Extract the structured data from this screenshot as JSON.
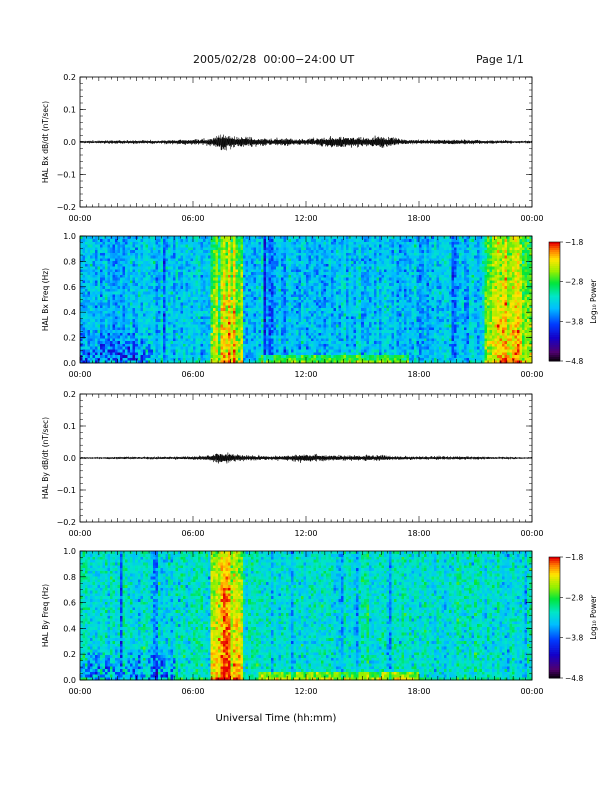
{
  "header": {
    "title": "2005/02/28  00:00−24:00 UT",
    "page": "Page 1/1"
  },
  "chart_data": [
    {
      "type": "line",
      "panel": "bx-derivative",
      "ylabel": "HAL Bx dB/dt (nT/sec)",
      "xlabel": "",
      "xlim": [
        "00:00",
        "24:00"
      ],
      "ylim": [
        -0.2,
        0.2
      ],
      "x_ticks": [
        "00:00",
        "06:00",
        "12:00",
        "18:00",
        "00:00"
      ],
      "y_ticks": [
        "0.2",
        "0.1",
        "0.0",
        "−0.1",
        "−0.2"
      ],
      "y_tick_values": [
        0.2,
        0.1,
        0.0,
        -0.1,
        -0.2
      ],
      "grid": false,
      "series": [
        {
          "x_hours": [
            0,
            2,
            4,
            6,
            7,
            7.5,
            8,
            9,
            10,
            11,
            12,
            13,
            14,
            15,
            16,
            17,
            18,
            20,
            22,
            24
          ],
          "amplitude": [
            0.003,
            0.004,
            0.004,
            0.006,
            0.008,
            0.022,
            0.015,
            0.011,
            0.008,
            0.009,
            0.007,
            0.011,
            0.014,
            0.01,
            0.015,
            0.006,
            0.005,
            0.006,
            0.004,
            0.003
          ]
        }
      ]
    },
    {
      "type": "heatmap",
      "panel": "bx-spectrogram",
      "ylabel": "HAL Bx Freq (Hz)",
      "xlabel": "",
      "xlim": [
        "00:00",
        "24:00"
      ],
      "ylim": [
        0.0,
        1.0
      ],
      "x_ticks": [
        "00:00",
        "06:00",
        "12:00",
        "18:00",
        "00:00"
      ],
      "y_ticks": [
        "1.0",
        "0.8",
        "0.6",
        "0.4",
        "0.2",
        "0.0"
      ],
      "y_tick_values": [
        1.0,
        0.8,
        0.6,
        0.4,
        0.2,
        0.0
      ],
      "colorbar": {
        "label": "Log₁₀ Power",
        "ticks": [
          "−1.8",
          "−2.8",
          "−3.8",
          "−4.8"
        ],
        "range": [
          -4.8,
          -1.8
        ]
      },
      "features": {
        "background": -3.4,
        "high_power_bands_hours": [
          [
            7.0,
            8.7
          ],
          [
            21.5,
            24.0
          ]
        ],
        "low_freq_enhancement_hours": [
          [
            9.5,
            17.5
          ]
        ],
        "low_power_patches_hours": [
          [
            0.0,
            3.8
          ]
        ]
      }
    },
    {
      "type": "line",
      "panel": "by-derivative",
      "ylabel": "HAL By dB/dt (nT/sec)",
      "xlabel": "",
      "xlim": [
        "00:00",
        "24:00"
      ],
      "ylim": [
        -0.2,
        0.2
      ],
      "x_ticks": [
        "00:00",
        "06:00",
        "12:00",
        "18:00",
        "00:00"
      ],
      "y_ticks": [
        "0.2",
        "0.1",
        "0.0",
        "−0.1",
        "−0.2"
      ],
      "y_tick_values": [
        0.2,
        0.1,
        0.0,
        -0.1,
        -0.2
      ],
      "grid": false,
      "series": [
        {
          "x_hours": [
            0,
            2,
            4,
            6,
            7,
            7.5,
            8,
            9,
            10,
            11,
            12,
            13,
            14,
            15,
            16,
            17,
            18,
            20,
            22,
            24
          ],
          "amplitude": [
            0.002,
            0.003,
            0.003,
            0.004,
            0.007,
            0.014,
            0.01,
            0.006,
            0.005,
            0.006,
            0.01,
            0.007,
            0.006,
            0.007,
            0.006,
            0.004,
            0.004,
            0.004,
            0.003,
            0.002
          ]
        }
      ]
    },
    {
      "type": "heatmap",
      "panel": "by-spectrogram",
      "ylabel": "HAL By Freq (Hz)",
      "xlabel": "Universal Time (hh:mm)",
      "xlim": [
        "00:00",
        "24:00"
      ],
      "ylim": [
        0.0,
        1.0
      ],
      "x_ticks": [
        "00:00",
        "06:00",
        "12:00",
        "18:00",
        "00:00"
      ],
      "y_ticks": [
        "1.0",
        "0.8",
        "0.6",
        "0.4",
        "0.2",
        "0.0"
      ],
      "y_tick_values": [
        1.0,
        0.8,
        0.6,
        0.4,
        0.2,
        0.0
      ],
      "colorbar": {
        "label": "Log₁₀ Power",
        "ticks": [
          "−1.8",
          "−2.8",
          "−3.8",
          "−4.8"
        ],
        "range": [
          -4.8,
          -1.8
        ]
      },
      "features": {
        "background": -3.2,
        "high_power_bands_hours": [
          [
            7.0,
            8.6
          ]
        ],
        "low_freq_enhancement_hours": [
          [
            9.5,
            18.0
          ]
        ],
        "low_power_patches_hours": [
          [
            0.0,
            5.0
          ]
        ]
      }
    }
  ],
  "colors": {
    "axis": "#000000",
    "trace": "#000000",
    "background": "#ffffff"
  }
}
